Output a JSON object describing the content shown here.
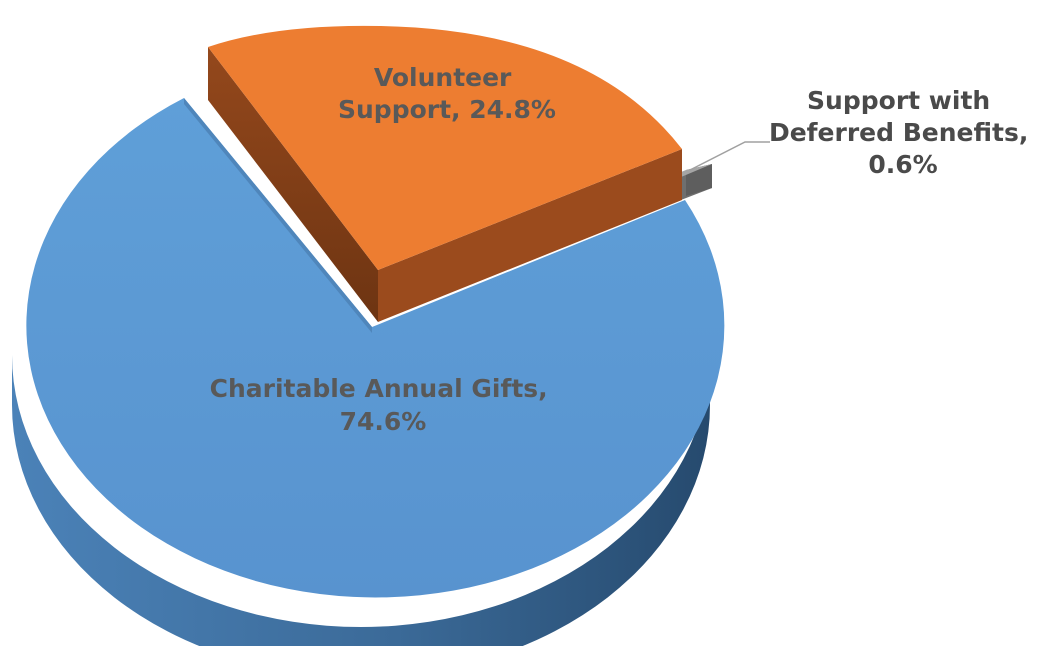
{
  "chart_data": {
    "type": "pie",
    "style": "3d-exploded",
    "slices": [
      {
        "name": "Charitable Annual Gifts",
        "value": 74.6,
        "label_lines": [
          "Charitable Annual Gifts,",
          "74.6%"
        ],
        "color": "#5b9bd5",
        "side_color": "#3d6f9f"
      },
      {
        "name": "Volunteer Support",
        "value": 24.8,
        "label_lines": [
          "Volunteer",
          "Support, 24.8%"
        ],
        "color": "#ed7d31",
        "side_color": "#8a431a"
      },
      {
        "name": "Support with Deferred Benefits",
        "value": 0.6,
        "label_lines": [
          "Support with",
          "Deferred Benefits,",
          "0.6%"
        ],
        "color": "#a5a5a5",
        "side_color": "#6b6b6b"
      }
    ]
  }
}
